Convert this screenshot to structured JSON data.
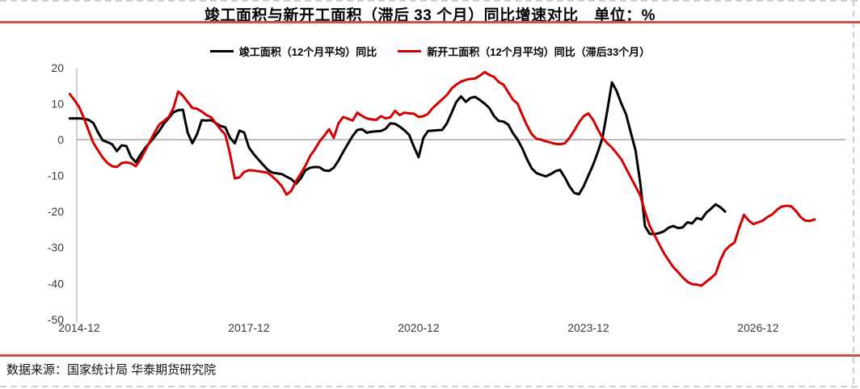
{
  "header": {
    "title": "竣工面积与新开工面积（滞后 33 个月）同比增速对比　单位：%"
  },
  "footer": {
    "source": "数据来源：国家统计局  华泰期货研究院"
  },
  "legend": {
    "items": [
      {
        "label": "竣工面积（12个月平均）同比",
        "color": "#000000"
      },
      {
        "label": "新开工面积（12个月平均）同比（滞后33个月）",
        "color": "#d40000"
      }
    ]
  },
  "colors": {
    "accent_divider": "#c8554d",
    "series_black": "#000000",
    "series_red": "#d40000",
    "zero_line": "#a8a8a8",
    "axis": "#b8b8b8",
    "tick_text": "#3a3a3a",
    "dashed_border": "#cfcfcf"
  },
  "chart_data": {
    "type": "line",
    "title": "竣工面积与新开工面积（滞后 33 个月）同比增速对比",
    "unit": "%",
    "x_start_month": "2014-10",
    "x_interval": "monthly",
    "ylim": [
      -50,
      20
    ],
    "y_ticks": [
      20,
      10,
      0,
      -10,
      -20,
      -30,
      -40,
      -50
    ],
    "grid": "zero-line-only",
    "legend_position": "top-center",
    "x_ticks": [
      {
        "label": "2014-12",
        "index": 2
      },
      {
        "label": "2017-12",
        "index": 38
      },
      {
        "label": "2020-12",
        "index": 74
      },
      {
        "label": "2023-12",
        "index": 110
      },
      {
        "label": "2026-12",
        "index": 146
      }
    ],
    "series": [
      {
        "id": "completed-area",
        "name": "竣工面积（12个月平均）同比",
        "color": "#000000",
        "end_month": "2026-05",
        "values": [
          5.9,
          5.9,
          5.9,
          5.8,
          5.5,
          4.6,
          2.0,
          -0.2,
          -0.7,
          -1.3,
          -3.2,
          -1.6,
          -1.8,
          -4.8,
          -6.3,
          -4.2,
          -2.3,
          -0.8,
          0.8,
          2.5,
          4.5,
          6.0,
          7.6,
          8.2,
          8.3,
          2.0,
          -1.0,
          1.5,
          5.4,
          5.3,
          5.4,
          4.6,
          3.8,
          3.4,
          0.5,
          -1.0,
          2.5,
          2.0,
          -2.2,
          -4.0,
          -5.5,
          -7.0,
          -8.4,
          -9.2,
          -9.4,
          -9.6,
          -10.3,
          -11.0,
          -12.3,
          -10.8,
          -8.5,
          -7.8,
          -7.6,
          -7.7,
          -8.6,
          -8.7,
          -7.8,
          -5.8,
          -3.4,
          -1.2,
          1.0,
          2.7,
          2.9,
          1.9,
          2.2,
          2.3,
          2.4,
          3.0,
          4.5,
          4.4,
          3.6,
          2.6,
          1.3,
          -2.0,
          -4.9,
          0.5,
          2.4,
          2.5,
          2.6,
          2.7,
          4.5,
          7.5,
          10.5,
          12.0,
          10.5,
          11.6,
          11.9,
          11.0,
          10.0,
          8.8,
          6.5,
          5.2,
          5.0,
          4.2,
          1.8,
          0.0,
          -2.5,
          -5.5,
          -8.0,
          -9.3,
          -9.8,
          -10.2,
          -9.6,
          -8.8,
          -8.4,
          -10.5,
          -13.0,
          -14.8,
          -15.2,
          -13.0,
          -10.0,
          -7.0,
          -3.5,
          0.5,
          8.0,
          15.9,
          13.5,
          10.0,
          7.0,
          2.0,
          -3.0,
          -12.0,
          -24.0,
          -26.2,
          -26.3,
          -26.0,
          -25.5,
          -24.5,
          -24.0,
          -24.6,
          -24.4,
          -23.0,
          -23.3,
          -21.8,
          -22.2,
          -20.3,
          -19.2,
          -18.0,
          -18.8,
          -20.0
        ]
      },
      {
        "id": "new-starts-lagged",
        "name": "新开工面积（12个月平均）同比（滞后33个月）",
        "color": "#d40000",
        "end_month": "2027-12",
        "values": [
          12.7,
          11.0,
          9.0,
          6.0,
          2.5,
          -0.9,
          -3.0,
          -5.0,
          -6.5,
          -7.4,
          -7.6,
          -6.5,
          -6.3,
          -6.6,
          -7.4,
          -5.5,
          -3.0,
          -0.5,
          2.0,
          4.2,
          5.2,
          6.3,
          8.8,
          13.4,
          12.2,
          10.5,
          8.8,
          8.6,
          7.8,
          6.8,
          6.2,
          4.5,
          2.8,
          1.4,
          -4.0,
          -10.8,
          -10.5,
          -9.0,
          -8.5,
          -8.6,
          -8.8,
          -9.0,
          -9.2,
          -10.3,
          -11.5,
          -13.0,
          -15.3,
          -14.2,
          -11.5,
          -9.5,
          -7.2,
          -4.5,
          -2.7,
          -0.5,
          1.1,
          2.9,
          0.5,
          4.5,
          6.3,
          5.8,
          5.3,
          7.5,
          6.6,
          5.9,
          5.6,
          5.5,
          6.5,
          5.9,
          6.2,
          8.0,
          6.8,
          7.5,
          7.3,
          7.2,
          6.3,
          6.5,
          7.2,
          8.8,
          10.0,
          11.2,
          12.4,
          14.2,
          15.3,
          16.1,
          16.6,
          16.9,
          17.0,
          17.8,
          18.8,
          18.0,
          17.4,
          16.0,
          15.3,
          13.2,
          11.1,
          10.0,
          6.8,
          3.9,
          1.5,
          0.2,
          0.0,
          -0.5,
          -0.8,
          -1.2,
          -1.3,
          -1.0,
          0.5,
          2.5,
          4.8,
          6.5,
          7.3,
          5.5,
          2.9,
          0.5,
          -1.0,
          -2.2,
          -3.8,
          -5.5,
          -8.0,
          -10.5,
          -13.0,
          -15.5,
          -20.0,
          -24.0,
          -26.5,
          -29.0,
          -31.5,
          -33.5,
          -35.4,
          -36.8,
          -38.3,
          -39.5,
          -40.2,
          -40.3,
          -40.6,
          -39.5,
          -38.5,
          -37.3,
          -33.5,
          -30.8,
          -29.5,
          -28.6,
          -24.5,
          -20.9,
          -22.5,
          -23.5,
          -23.0,
          -22.5,
          -21.5,
          -20.8,
          -19.5,
          -18.6,
          -18.4,
          -18.5,
          -19.8,
          -21.5,
          -22.5,
          -22.6,
          -22.2
        ]
      }
    ]
  }
}
